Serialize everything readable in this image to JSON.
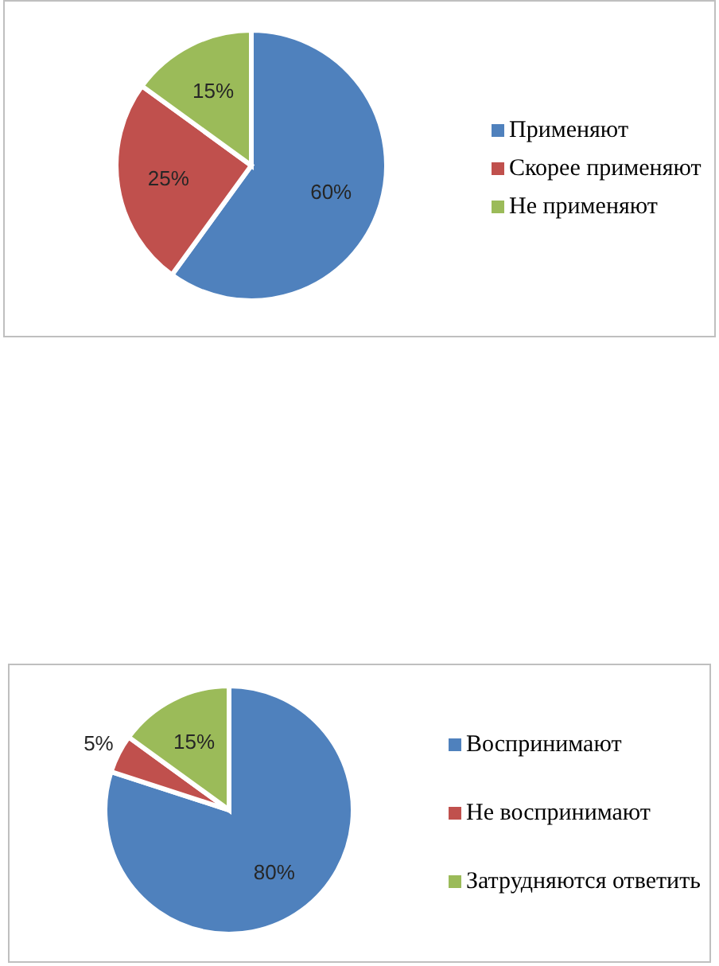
{
  "chart_data": [
    {
      "type": "pie",
      "categories": [
        "Применяют",
        "Скорее применяют",
        "Не применяют"
      ],
      "values": [
        60,
        25,
        15
      ],
      "colors": [
        "#4f81bd",
        "#c0504d",
        "#9bbb59"
      ],
      "value_labels": [
        "60%",
        "25%",
        "15%"
      ],
      "legend": "right"
    },
    {
      "type": "pie",
      "categories": [
        "Воспринимают",
        "Не воспринимают",
        "Затрудняются ответить"
      ],
      "values": [
        80,
        5,
        15
      ],
      "colors": [
        "#4f81bd",
        "#c0504d",
        "#9bbb59"
      ],
      "value_labels": [
        "80%",
        "5%",
        "15%"
      ],
      "legend": "right"
    }
  ]
}
